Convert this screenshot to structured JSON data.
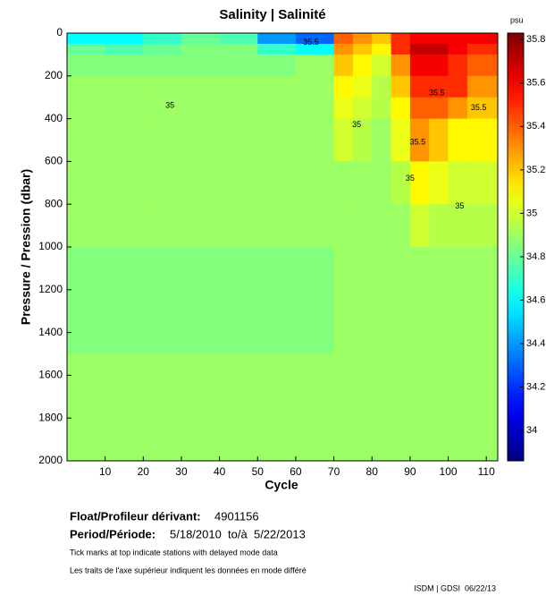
{
  "chart_data": {
    "type": "heatmap",
    "title": "Salinity | Salinité",
    "xlabel": "Cycle",
    "ylabel": "Pressure / Pression (dbar)",
    "colorbar_label": "psu",
    "xlim": [
      0,
      113
    ],
    "xticks": [
      10,
      20,
      30,
      40,
      50,
      60,
      70,
      80,
      90,
      100,
      110
    ],
    "ylim": [
      0,
      2000
    ],
    "yticks": [
      0,
      200,
      400,
      600,
      800,
      1000,
      1200,
      1400,
      1600,
      1800,
      2000
    ],
    "y_inverted": true,
    "clim": [
      33.86,
      35.83
    ],
    "cticks": [
      34,
      34.2,
      34.4,
      34.6,
      34.8,
      35,
      35.2,
      35.4,
      35.6,
      35.8
    ],
    "colormap": "jet",
    "x_edges": [
      0,
      10,
      20,
      30,
      40,
      50,
      60,
      70,
      75,
      80,
      85,
      90,
      95,
      100,
      105,
      113
    ],
    "y_edges": [
      0,
      50,
      100,
      200,
      300,
      400,
      600,
      800,
      1000,
      1200,
      1500,
      2000
    ],
    "z": [
      [
        34.6,
        34.6,
        34.7,
        34.8,
        34.75,
        34.4,
        34.3,
        35.4,
        35.3,
        35.2,
        35.5,
        35.6,
        35.6,
        35.6,
        35.6
      ],
      [
        34.8,
        34.75,
        34.8,
        34.85,
        34.85,
        34.7,
        34.6,
        35.3,
        35.2,
        35.1,
        35.5,
        35.7,
        35.7,
        35.6,
        35.5
      ],
      [
        34.85,
        34.85,
        34.85,
        34.85,
        34.85,
        34.85,
        34.9,
        35.2,
        35.1,
        35.0,
        35.3,
        35.6,
        35.6,
        35.5,
        35.4
      ],
      [
        34.9,
        34.9,
        34.9,
        34.9,
        34.9,
        34.9,
        34.9,
        35.1,
        35.05,
        34.95,
        35.2,
        35.5,
        35.5,
        35.5,
        35.3
      ],
      [
        34.9,
        34.9,
        34.9,
        34.9,
        34.9,
        34.9,
        34.9,
        35.05,
        35.0,
        34.95,
        35.1,
        35.4,
        35.4,
        35.3,
        35.2
      ],
      [
        34.9,
        34.9,
        34.9,
        34.9,
        34.9,
        34.9,
        34.9,
        35.0,
        34.95,
        34.9,
        35.05,
        35.3,
        35.2,
        35.1,
        35.1
      ],
      [
        34.9,
        34.9,
        34.9,
        34.9,
        34.9,
        34.9,
        34.9,
        34.9,
        34.9,
        34.9,
        34.95,
        35.1,
        35.05,
        35.0,
        35.0
      ],
      [
        34.9,
        34.9,
        34.9,
        34.9,
        34.9,
        34.9,
        34.9,
        34.9,
        34.9,
        34.9,
        34.9,
        35.0,
        34.95,
        34.95,
        34.95
      ],
      [
        34.85,
        34.85,
        34.85,
        34.85,
        34.85,
        34.85,
        34.85,
        34.9,
        34.9,
        34.9,
        34.9,
        34.9,
        34.9,
        34.9,
        34.9
      ],
      [
        34.85,
        34.85,
        34.85,
        34.85,
        34.85,
        34.85,
        34.85,
        34.9,
        34.9,
        34.9,
        34.9,
        34.9,
        34.9,
        34.9,
        34.9
      ],
      [
        34.9,
        34.9,
        34.9,
        34.9,
        34.9,
        34.9,
        34.9,
        34.9,
        34.9,
        34.9,
        34.9,
        34.9,
        34.9,
        34.9,
        34.9
      ]
    ],
    "contour_labels": [
      {
        "text": "35.5",
        "x": 64,
        "y": 45
      },
      {
        "text": "35",
        "x": 27,
        "y": 340
      },
      {
        "text": "35",
        "x": 76,
        "y": 430
      },
      {
        "text": "35.5",
        "x": 97,
        "y": 280
      },
      {
        "text": "35.5",
        "x": 92,
        "y": 510
      },
      {
        "text": "35",
        "x": 90,
        "y": 680
      },
      {
        "text": "35",
        "x": 103,
        "y": 810
      },
      {
        "text": "35.5",
        "x": 108,
        "y": 350
      }
    ]
  },
  "footer": {
    "float_label": "Float/Profileur dérivant:",
    "float_id": "4901156",
    "period_label": "Period/Période:",
    "period": "5/18/2010  to/à  5/22/2013",
    "note_en": "Tick marks at top indicate stations with delayed mode data",
    "note_fr": "Les traits de l'axe supérieur indiquent les données en mode différé",
    "credit": "ISDM | GDSI  06/22/13"
  }
}
